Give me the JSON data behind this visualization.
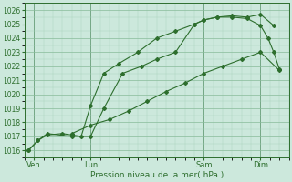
{
  "xlabel": "Pression niveau de la mer( hPa )",
  "bg_color": "#cce8dc",
  "grid_major_color": "#88bb99",
  "grid_minor_color": "#aad4bc",
  "line_color": "#2d6e2d",
  "ylim": [
    1015.5,
    1026.5
  ],
  "yticks": [
    1016,
    1017,
    1018,
    1019,
    1020,
    1021,
    1022,
    1023,
    1024,
    1025,
    1026
  ],
  "xlim": [
    0,
    14
  ],
  "xtick_labels": [
    "Ven",
    "Lun",
    "Sam",
    "Dim"
  ],
  "xtick_positions": [
    0.5,
    3.5,
    9.5,
    12.5
  ],
  "vline_positions": [
    0.5,
    3.5,
    9.5,
    12.5
  ],
  "line1_x": [
    0.2,
    0.7,
    1.2,
    2.5,
    3.5,
    4.2,
    5.2,
    6.2,
    7.0,
    8.0,
    9.0,
    9.5,
    10.2,
    11.0,
    11.8,
    12.5,
    13.2
  ],
  "line1_y": [
    1016.0,
    1016.7,
    1017.2,
    1017.0,
    1017.0,
    1019.0,
    1021.5,
    1022.0,
    1022.5,
    1023.0,
    1025.0,
    1025.3,
    1025.5,
    1025.6,
    1025.5,
    1025.7,
    1024.9
  ],
  "line2_x": [
    0.2,
    0.7,
    1.2,
    2.0,
    2.5,
    3.0,
    3.5,
    4.2,
    5.0,
    6.0,
    7.0,
    8.0,
    9.0,
    9.5,
    10.2,
    11.0,
    11.8,
    12.5,
    12.9,
    13.2,
    13.5
  ],
  "line2_y": [
    1016.0,
    1016.7,
    1017.1,
    1017.2,
    1017.1,
    1017.0,
    1019.2,
    1021.5,
    1022.2,
    1023.0,
    1024.0,
    1024.5,
    1025.0,
    1025.3,
    1025.5,
    1025.5,
    1025.4,
    1024.9,
    1024.0,
    1023.0,
    1021.8
  ],
  "line3_x": [
    2.5,
    3.5,
    4.5,
    5.5,
    6.5,
    7.5,
    8.5,
    9.5,
    10.5,
    11.5,
    12.5,
    13.5
  ],
  "line3_y": [
    1017.2,
    1017.8,
    1018.2,
    1018.8,
    1019.5,
    1020.2,
    1020.8,
    1021.5,
    1022.0,
    1022.5,
    1023.0,
    1021.7
  ]
}
